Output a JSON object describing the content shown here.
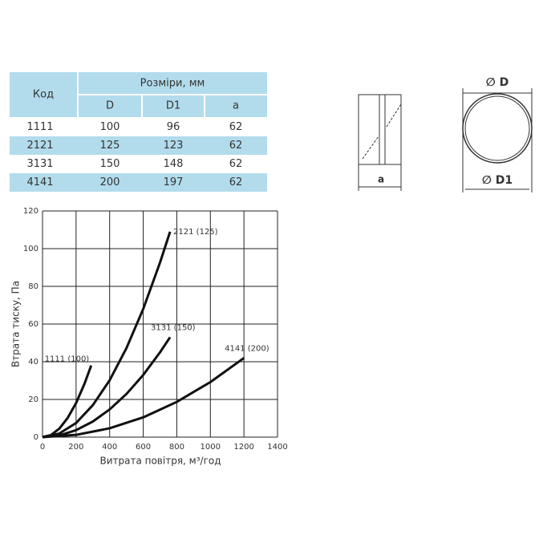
{
  "table": {
    "header": {
      "code": "Код",
      "group": "Розміри, мм",
      "columns": [
        "D",
        "D1",
        "a"
      ]
    },
    "rows": [
      [
        "1111",
        "100",
        "96",
        "62"
      ],
      [
        "2121",
        "125",
        "123",
        "62"
      ],
      [
        "3131",
        "150",
        "148",
        "62"
      ],
      [
        "4141",
        "200",
        "197",
        "62"
      ]
    ]
  },
  "drawings": {
    "side_label": "a",
    "diameter_outer": "∅ D",
    "diameter_inner": "∅ D1"
  },
  "chart_data": {
    "type": "line",
    "x_label": "Витрата повітря, м³/год",
    "y_label": "Втрата тиску, Па",
    "xlim": [
      0,
      1400
    ],
    "xticks": [
      0,
      200,
      400,
      600,
      800,
      1000,
      1200,
      1400
    ],
    "ylim": [
      0,
      120
    ],
    "yticks": [
      0,
      20,
      40,
      60,
      80,
      100,
      120
    ],
    "grid": true,
    "series": [
      {
        "name": "1111 (100)",
        "color": "#111111",
        "x": [
          0,
          50,
          100,
          150,
          200,
          250,
          290
        ],
        "values": [
          0,
          1.1,
          4.5,
          10.2,
          18.1,
          28.3,
          38
        ]
      },
      {
        "name": "2121 (125)",
        "color": "#111111",
        "x": [
          0,
          100,
          200,
          300,
          400,
          500,
          600,
          700,
          760
        ],
        "values": [
          0,
          1.9,
          7.5,
          17,
          30.2,
          47.2,
          68,
          92.6,
          109
        ]
      },
      {
        "name": "3131 (150)",
        "color": "#111111",
        "x": [
          0,
          100,
          200,
          300,
          400,
          500,
          600,
          700,
          760
        ],
        "values": [
          0,
          0.9,
          3.7,
          8.3,
          14.7,
          22.9,
          33,
          45,
          53
        ]
      },
      {
        "name": "4141 (200)",
        "color": "#111111",
        "x": [
          0,
          200,
          400,
          600,
          800,
          1000,
          1200
        ],
        "values": [
          0,
          1.2,
          4.7,
          10.5,
          18.7,
          29.2,
          42
        ]
      }
    ]
  }
}
